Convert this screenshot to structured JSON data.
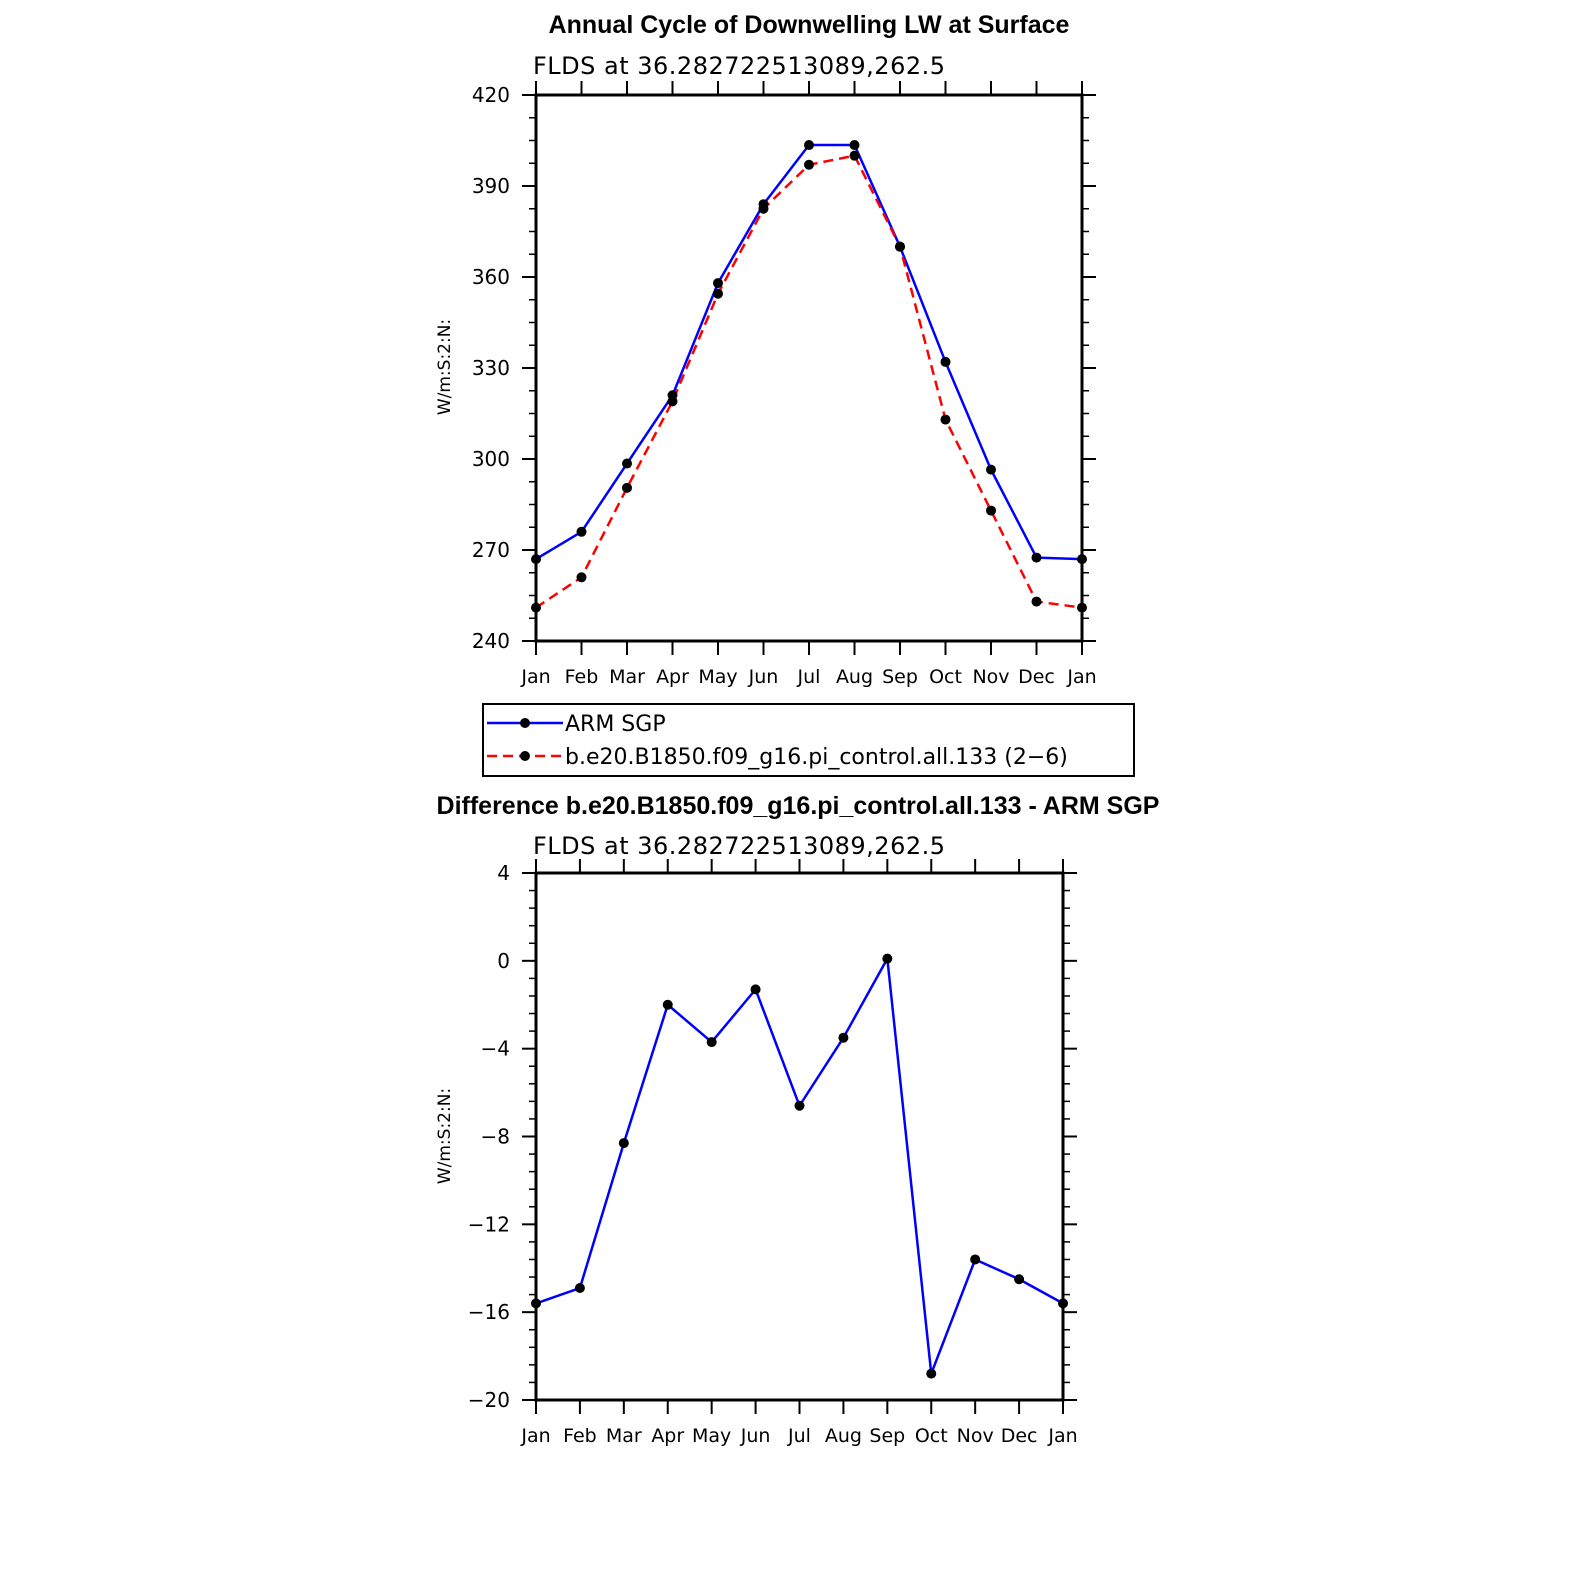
{
  "chart_data": [
    {
      "type": "line",
      "title": "Annual Cycle of Downwelling LW at Surface",
      "subtitle": "FLDS at 36.282722513089,262.5",
      "ylabel": "W/m:S:2:N:",
      "xlabel": "",
      "categories": [
        "Jan",
        "Feb",
        "Mar",
        "Apr",
        "May",
        "Jun",
        "Jul",
        "Aug",
        "Sep",
        "Oct",
        "Nov",
        "Dec",
        "Jan"
      ],
      "ylim": [
        240,
        420
      ],
      "yticks": [
        240,
        270,
        300,
        330,
        360,
        390,
        420
      ],
      "ytick_labels": [
        "240",
        "270",
        "300",
        "330",
        "360",
        "390",
        "420"
      ],
      "legend_position": "below",
      "series": [
        {
          "name": "ARM SGP",
          "color": "#0000ff",
          "dash": "solid",
          "values": [
            267,
            276,
            298.5,
            321,
            358,
            384,
            403.5,
            403.5,
            370,
            332,
            296.5,
            267.5,
            267
          ]
        },
        {
          "name": "b.e20.B1850.f09_g16.pi_control.all.133 (2−6)",
          "color": "#ff0000",
          "dash": "dashed",
          "values": [
            251,
            261,
            290.5,
            319,
            354.5,
            382.5,
            397,
            400,
            370,
            313,
            283,
            253,
            251
          ]
        }
      ]
    },
    {
      "type": "line",
      "title": "Difference b.e20.B1850.f09_g16.pi_control.all.133 - ARM SGP",
      "subtitle": "FLDS at 36.282722513089,262.5",
      "ylabel": "W/m:S:2:N:",
      "xlabel": "",
      "categories": [
        "Jan",
        "Feb",
        "Mar",
        "Apr",
        "May",
        "Jun",
        "Jul",
        "Aug",
        "Sep",
        "Oct",
        "Nov",
        "Dec",
        "Jan"
      ],
      "ylim": [
        -20,
        4
      ],
      "yticks": [
        -20,
        -16,
        -12,
        -8,
        -4,
        0,
        4
      ],
      "ytick_labels": [
        "−20",
        "−16",
        "−12",
        "−8",
        "−4",
        "0",
        "4"
      ],
      "series": [
        {
          "name": "",
          "color": "#0000ff",
          "dash": "solid",
          "values": [
            -15.6,
            -14.9,
            -8.3,
            -2.0,
            -3.7,
            -1.3,
            -6.6,
            -3.5,
            0.1,
            -18.8,
            -13.6,
            -14.5,
            -15.6
          ]
        }
      ]
    }
  ]
}
